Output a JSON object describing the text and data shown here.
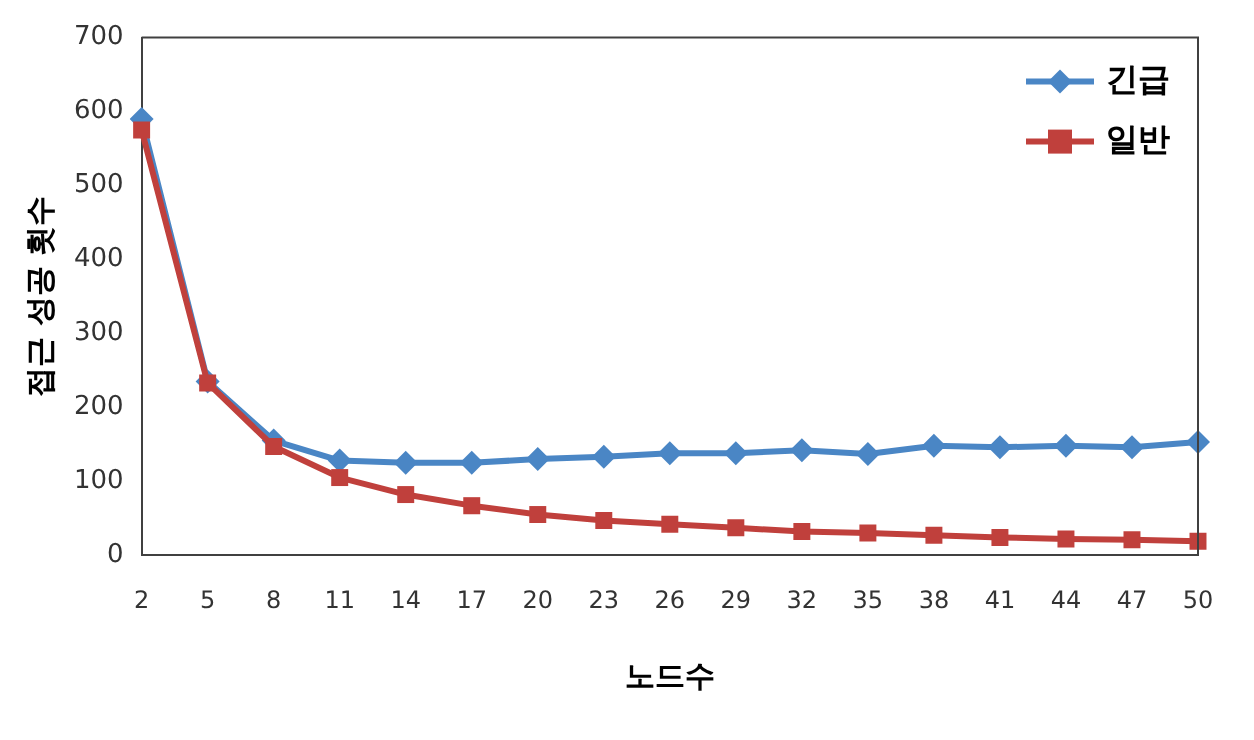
{
  "chart_data": {
    "type": "line",
    "xlabel": "노드수",
    "ylabel": "접근 성공 횟수",
    "categories": [
      "2",
      "5",
      "8",
      "11",
      "14",
      "17",
      "20",
      "23",
      "26",
      "29",
      "32",
      "35",
      "38",
      "41",
      "44",
      "47",
      "50"
    ],
    "series": [
      {
        "name": "긴급",
        "color": "#4a86c5",
        "marker": "diamond",
        "values": [
          590,
          235,
          155,
          128,
          125,
          125,
          130,
          133,
          138,
          138,
          142,
          137,
          148,
          146,
          148,
          146,
          153
        ]
      },
      {
        "name": "일반",
        "color": "#c0403c",
        "marker": "square",
        "values": [
          575,
          233,
          147,
          105,
          82,
          67,
          55,
          47,
          42,
          37,
          32,
          30,
          27,
          24,
          22,
          21,
          19
        ]
      }
    ],
    "ylim": [
      0,
      700
    ],
    "yticks": [
      0,
      100,
      200,
      300,
      400,
      500,
      600,
      700
    ],
    "grid": false,
    "legend": "top right",
    "line_style": "solid"
  }
}
